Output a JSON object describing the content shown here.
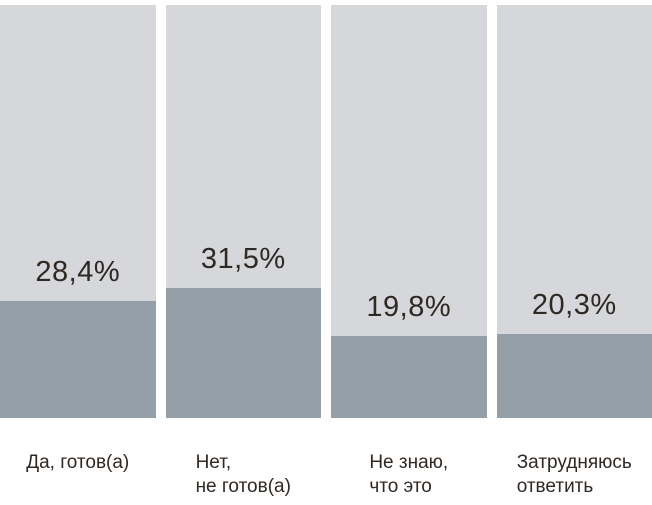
{
  "chart_data": {
    "type": "bar",
    "subtype": "vertical-percentage-fill-columns",
    "title": "",
    "xlabel": "",
    "ylabel": "",
    "ylim": [
      0,
      100
    ],
    "grid": false,
    "legend_position": "none",
    "categories": [
      "Да, готов(а)",
      "Нет, не готов(а)",
      "Не знаю, что это",
      "Затрудняюсь ответить"
    ],
    "category_lines": [
      [
        "Да, готов(а)"
      ],
      [
        "Нет,",
        "не готов(а)"
      ],
      [
        "Не знаю,",
        "что это"
      ],
      [
        "Затрудняюсь",
        "ответить"
      ]
    ],
    "values": [
      28.4,
      31.5,
      19.8,
      20.3
    ],
    "value_labels": [
      "28,4%",
      "31,5%",
      "19,8%",
      "20,3%"
    ],
    "colors": {
      "track": "#d6d7da",
      "fill": "#949fa8",
      "text": "#2f2823",
      "background": "#ffffff"
    }
  }
}
